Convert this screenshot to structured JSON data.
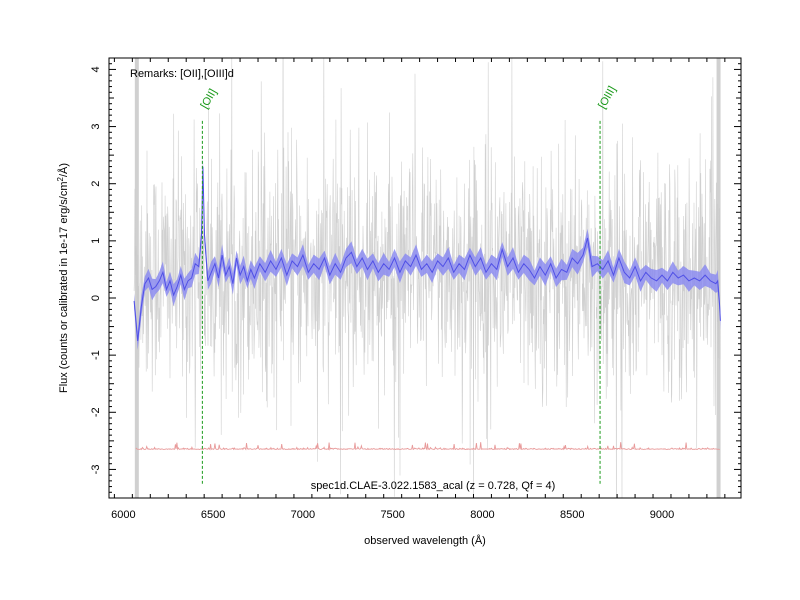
{
  "chart_data": {
    "type": "line",
    "title": "",
    "xlabel": "observed wavelength (Å)",
    "ylabel_main": "Flux (counts or calibrated in 1e-17 erg/s/cm",
    "ylabel_sup": "2",
    "ylabel_tail": "/Å)",
    "xlim": [
      5920,
      9440
    ],
    "ylim": [
      -3.5,
      4.2
    ],
    "x_ticks": [
      6000,
      6500,
      7000,
      7500,
      8000,
      8500,
      9000
    ],
    "y_ticks": [
      -3,
      -2,
      -1,
      0,
      1,
      2,
      3,
      4
    ],
    "remarks": "Remarks: [OII],[OIII]d",
    "spectrum_id": "spec1d.CLAE-3.022.1583_acal (z = 0.728, Qf = 4)",
    "wavelength_range": [
      6060,
      9325
    ],
    "grid": false,
    "emission_lines": [
      {
        "name": "[OII]",
        "x": 6440
      },
      {
        "name": "[OIII]",
        "x": 8655
      }
    ],
    "series": [
      {
        "role": "raw",
        "color": "#c8c8c8",
        "noise_sigma": 1.05
      },
      {
        "role": "smoothed",
        "color": "#5050e6",
        "band_color": "#8c8cf0",
        "points": [
          [
            6060,
            -0.05
          ],
          [
            6080,
            -0.75
          ],
          [
            6100,
            -0.15
          ],
          [
            6120,
            0.25
          ],
          [
            6140,
            0.35
          ],
          [
            6160,
            0.15
          ],
          [
            6180,
            0.2
          ],
          [
            6200,
            0.3
          ],
          [
            6220,
            0.45
          ],
          [
            6240,
            0.15
          ],
          [
            6260,
            0.3
          ],
          [
            6280,
            0.05
          ],
          [
            6300,
            0.2
          ],
          [
            6320,
            0.4
          ],
          [
            6340,
            0.15
          ],
          [
            6360,
            0.3
          ],
          [
            6380,
            0.35
          ],
          [
            6400,
            0.6
          ],
          [
            6420,
            0.55
          ],
          [
            6435,
            1.1
          ],
          [
            6443,
            2.3
          ],
          [
            6452,
            1.1
          ],
          [
            6470,
            0.3
          ],
          [
            6490,
            0.45
          ],
          [
            6510,
            0.6
          ],
          [
            6530,
            0.35
          ],
          [
            6550,
            0.75
          ],
          [
            6570,
            0.4
          ],
          [
            6590,
            0.55
          ],
          [
            6610,
            0.25
          ],
          [
            6630,
            0.7
          ],
          [
            6650,
            0.4
          ],
          [
            6670,
            0.55
          ],
          [
            6690,
            0.3
          ],
          [
            6710,
            0.5
          ],
          [
            6730,
            0.35
          ],
          [
            6760,
            0.6
          ],
          [
            6790,
            0.45
          ],
          [
            6820,
            0.65
          ],
          [
            6850,
            0.5
          ],
          [
            6880,
            0.7
          ],
          [
            6910,
            0.4
          ],
          [
            6940,
            0.65
          ],
          [
            6970,
            0.55
          ],
          [
            7000,
            0.75
          ],
          [
            7030,
            0.45
          ],
          [
            7060,
            0.6
          ],
          [
            7090,
            0.5
          ],
          [
            7120,
            0.7
          ],
          [
            7150,
            0.4
          ],
          [
            7180,
            0.6
          ],
          [
            7210,
            0.45
          ],
          [
            7240,
            0.7
          ],
          [
            7270,
            0.8
          ],
          [
            7300,
            0.55
          ],
          [
            7330,
            0.7
          ],
          [
            7360,
            0.5
          ],
          [
            7390,
            0.65
          ],
          [
            7420,
            0.45
          ],
          [
            7450,
            0.6
          ],
          [
            7480,
            0.5
          ],
          [
            7510,
            0.7
          ],
          [
            7540,
            0.45
          ],
          [
            7570,
            0.65
          ],
          [
            7600,
            0.55
          ],
          [
            7630,
            0.75
          ],
          [
            7660,
            0.5
          ],
          [
            7690,
            0.6
          ],
          [
            7720,
            0.45
          ],
          [
            7750,
            0.65
          ],
          [
            7780,
            0.55
          ],
          [
            7810,
            0.7
          ],
          [
            7840,
            0.45
          ],
          [
            7870,
            0.6
          ],
          [
            7900,
            0.5
          ],
          [
            7930,
            0.75
          ],
          [
            7960,
            0.55
          ],
          [
            7990,
            0.7
          ],
          [
            8020,
            0.45
          ],
          [
            8050,
            0.6
          ],
          [
            8080,
            0.5
          ],
          [
            8110,
            0.85
          ],
          [
            8140,
            0.55
          ],
          [
            8170,
            0.7
          ],
          [
            8200,
            0.45
          ],
          [
            8230,
            0.6
          ],
          [
            8260,
            0.5
          ],
          [
            8290,
            0.35
          ],
          [
            8320,
            0.55
          ],
          [
            8350,
            0.4
          ],
          [
            8380,
            0.6
          ],
          [
            8410,
            0.35
          ],
          [
            8440,
            0.5
          ],
          [
            8470,
            0.45
          ],
          [
            8500,
            0.7
          ],
          [
            8530,
            0.6
          ],
          [
            8560,
            0.75
          ],
          [
            8585,
            1.05
          ],
          [
            8610,
            0.55
          ],
          [
            8640,
            0.6
          ],
          [
            8670,
            0.5
          ],
          [
            8700,
            0.65
          ],
          [
            8730,
            0.4
          ],
          [
            8760,
            0.7
          ],
          [
            8790,
            0.45
          ],
          [
            8820,
            0.35
          ],
          [
            8850,
            0.55
          ],
          [
            8880,
            0.3
          ],
          [
            8910,
            0.45
          ],
          [
            8940,
            0.35
          ],
          [
            8970,
            0.3
          ],
          [
            9000,
            0.4
          ],
          [
            9030,
            0.3
          ],
          [
            9060,
            0.45
          ],
          [
            9090,
            0.35
          ],
          [
            9120,
            0.4
          ],
          [
            9150,
            0.3
          ],
          [
            9180,
            0.35
          ],
          [
            9210,
            0.3
          ],
          [
            9240,
            0.4
          ],
          [
            9270,
            0.3
          ],
          [
            9300,
            0.25
          ],
          [
            9310,
            0.3
          ],
          [
            9320,
            -0.1
          ],
          [
            9325,
            -0.4
          ]
        ]
      },
      {
        "role": "noise",
        "color": "#e89a9a",
        "level": -2.65
      }
    ]
  }
}
